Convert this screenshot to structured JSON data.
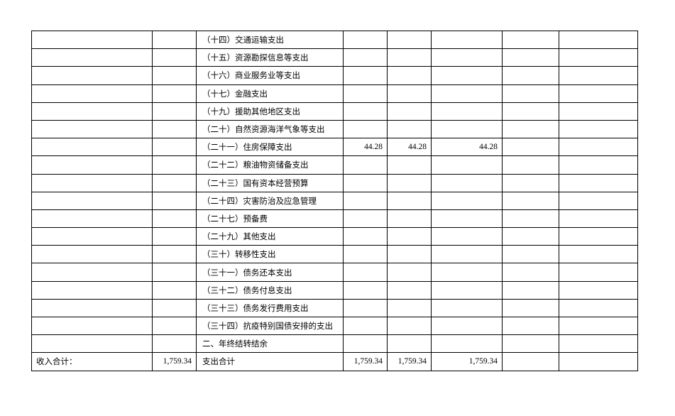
{
  "table": {
    "rows": [
      [
        null,
        null,
        "（十四）交通运输支出",
        null,
        null,
        null,
        null,
        null
      ],
      [
        null,
        null,
        "（十五）资源勘探信息等支出",
        null,
        null,
        null,
        null,
        null
      ],
      [
        null,
        null,
        "（十六）商业服务业等支出",
        null,
        null,
        null,
        null,
        null
      ],
      [
        null,
        null,
        "（十七）金融支出",
        null,
        null,
        null,
        null,
        null
      ],
      [
        null,
        null,
        "（十九）援助其他地区支出",
        null,
        null,
        null,
        null,
        null
      ],
      [
        null,
        null,
        "（二十）自然资源海洋气象等支出",
        null,
        null,
        null,
        null,
        null
      ],
      [
        null,
        null,
        "（二十一）住房保障支出",
        "44.28",
        "44.28",
        "44.28",
        null,
        null
      ],
      [
        null,
        null,
        "（二十二）粮油物资储备支出",
        null,
        null,
        null,
        null,
        null
      ],
      [
        null,
        null,
        "（二十三）国有资本经营预算",
        null,
        null,
        null,
        null,
        null
      ],
      [
        null,
        null,
        "（二十四）灾害防治及应急管理",
        null,
        null,
        null,
        null,
        null
      ],
      [
        null,
        null,
        "（二十七）预备费",
        null,
        null,
        null,
        null,
        null
      ],
      [
        null,
        null,
        "（二十九）其他支出",
        null,
        null,
        null,
        null,
        null
      ],
      [
        null,
        null,
        "（三十）转移性支出",
        null,
        null,
        null,
        null,
        null
      ],
      [
        null,
        null,
        "（三十一）债务还本支出",
        null,
        null,
        null,
        null,
        null
      ],
      [
        null,
        null,
        "（三十二）债务付息支出",
        null,
        null,
        null,
        null,
        null
      ],
      [
        null,
        null,
        "（三十三）债务发行费用支出",
        null,
        null,
        null,
        null,
        null
      ],
      [
        null,
        null,
        "（三十四）抗疫特别国债安排的支出",
        null,
        null,
        null,
        null,
        null
      ],
      [
        null,
        null,
        "二、年终结转结余",
        null,
        null,
        null,
        null,
        null
      ],
      [
        "收入合计：",
        "1,759.34",
        "支出合计",
        "1,759.34",
        "1,759.34",
        "1,759.34",
        null,
        null
      ]
    ]
  }
}
